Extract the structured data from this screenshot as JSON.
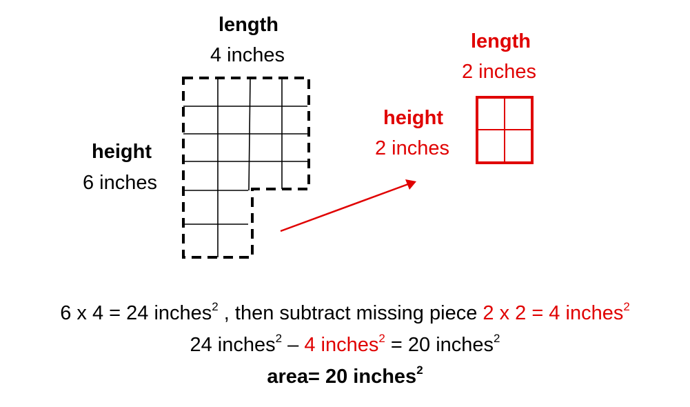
{
  "big_shape": {
    "length_title": "length",
    "length_value": "4 inches",
    "height_title": "height",
    "height_value": "6 inches"
  },
  "missing_piece": {
    "length_title": "length",
    "length_value": "2 inches",
    "height_title": "height",
    "height_value": "2 inches"
  },
  "equations": {
    "line1_black": "6 x 4 = 24 inches",
    "line1_sup": "2",
    "line1_mid": " , then subtract missing piece ",
    "line1_red": "2 x 2 = 4 inches",
    "line1_red_sup": "2",
    "line2_start": "24 inches",
    "line2_sup1": "2",
    "line2_dash": " – ",
    "line2_red": "4 inches",
    "line2_red_sup": "2",
    "line2_end": " = 20 inches",
    "line2_sup3": "2",
    "line3": "area= 20 inches",
    "line3_sup": "2"
  },
  "colors": {
    "accent": "#e00000",
    "ink": "#000000"
  }
}
